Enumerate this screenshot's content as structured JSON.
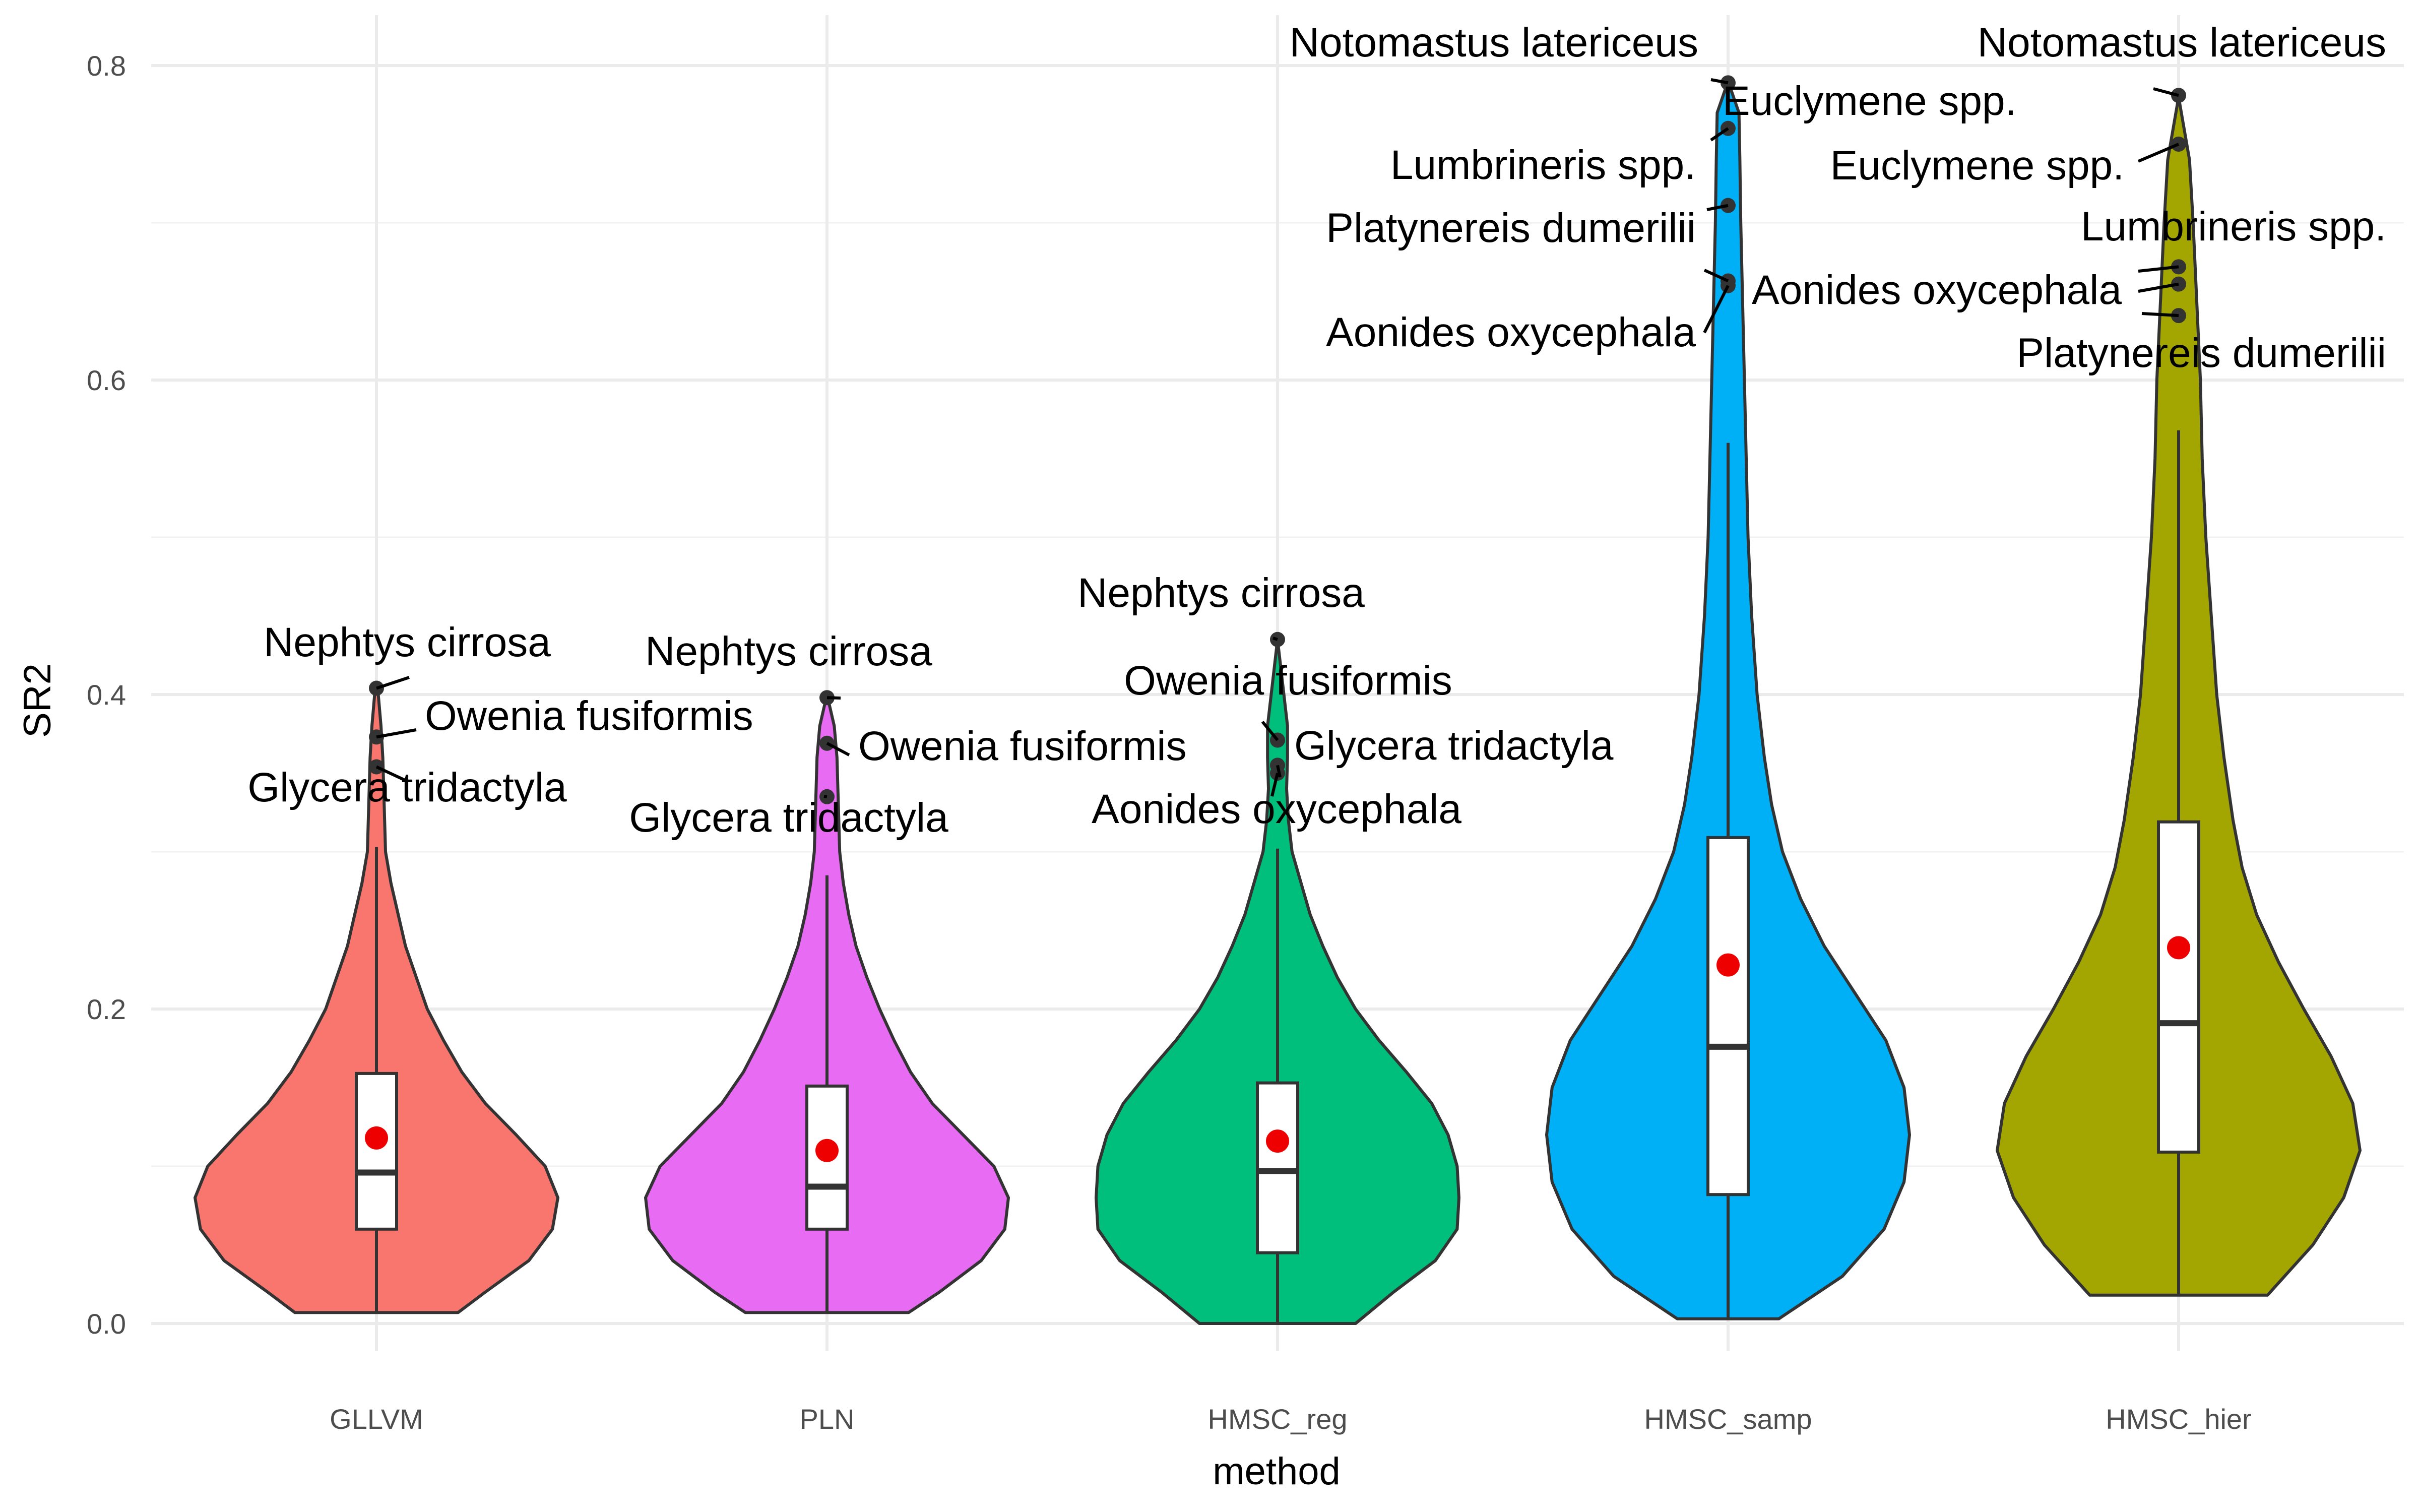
{
  "chart_data": {
    "type": "violin",
    "xlabel": "method",
    "ylabel": "SR2",
    "ylim": [
      0,
      0.8
    ],
    "yticks": [
      0.0,
      0.2,
      0.4,
      0.6,
      0.8
    ],
    "ytick_labels": [
      "0.0",
      "0.2",
      "0.4",
      "0.6",
      "0.8"
    ],
    "grid": true,
    "legend": "none",
    "categories": [
      "GLLVM",
      "PLN",
      "HMSC_reg",
      "HMSC_samp",
      "HMSC_hier"
    ],
    "series": [
      {
        "category": "GLLVM",
        "color": "#F8766D",
        "range": [
          0.007,
          0.405
        ],
        "q1": 0.06,
        "median": 0.096,
        "q3": 0.159,
        "whisker_low": 0.007,
        "whisker_high": 0.303,
        "mean": 0.118,
        "density": [
          [
            0.007,
            0.45
          ],
          [
            0.02,
            0.6
          ],
          [
            0.04,
            0.84
          ],
          [
            0.06,
            0.97
          ],
          [
            0.08,
            1.0
          ],
          [
            0.1,
            0.93
          ],
          [
            0.12,
            0.77
          ],
          [
            0.14,
            0.6
          ],
          [
            0.16,
            0.47
          ],
          [
            0.18,
            0.37
          ],
          [
            0.2,
            0.28
          ],
          [
            0.22,
            0.22
          ],
          [
            0.24,
            0.16
          ],
          [
            0.26,
            0.12
          ],
          [
            0.28,
            0.08
          ],
          [
            0.3,
            0.05
          ],
          [
            0.32,
            0.045
          ],
          [
            0.34,
            0.04
          ],
          [
            0.36,
            0.035
          ],
          [
            0.38,
            0.025
          ],
          [
            0.4,
            0.01
          ],
          [
            0.405,
            0.0
          ]
        ],
        "outliers": [
          {
            "label": "Nephtys cirrosa",
            "y": 0.404
          },
          {
            "label": "Owenia fusiformis",
            "y": 0.373
          },
          {
            "label": "Glycera tridactyla",
            "y": 0.354
          }
        ]
      },
      {
        "category": "PLN",
        "color": "#E76BF3",
        "range": [
          0.007,
          0.4
        ],
        "q1": 0.06,
        "median": 0.087,
        "q3": 0.151,
        "whisker_low": 0.007,
        "whisker_high": 0.285,
        "mean": 0.11,
        "density": [
          [
            0.007,
            0.45
          ],
          [
            0.02,
            0.62
          ],
          [
            0.04,
            0.85
          ],
          [
            0.06,
            0.98
          ],
          [
            0.08,
            1.0
          ],
          [
            0.1,
            0.92
          ],
          [
            0.12,
            0.75
          ],
          [
            0.14,
            0.58
          ],
          [
            0.16,
            0.46
          ],
          [
            0.18,
            0.37
          ],
          [
            0.2,
            0.29
          ],
          [
            0.22,
            0.22
          ],
          [
            0.24,
            0.16
          ],
          [
            0.26,
            0.12
          ],
          [
            0.28,
            0.09
          ],
          [
            0.3,
            0.07
          ],
          [
            0.32,
            0.065
          ],
          [
            0.34,
            0.06
          ],
          [
            0.36,
            0.055
          ],
          [
            0.38,
            0.04
          ],
          [
            0.4,
            0.0
          ]
        ],
        "outliers": [
          {
            "label": "Nephtys cirrosa",
            "y": 0.398
          },
          {
            "label": "Owenia fusiformis",
            "y": 0.369
          },
          {
            "label": "Glycera tridactyla",
            "y": 0.335
          }
        ]
      },
      {
        "category": "HMSC_reg",
        "color": "#00BF7D",
        "range": [
          0.0,
          0.435
        ],
        "q1": 0.045,
        "median": 0.097,
        "q3": 0.153,
        "whisker_low": 0.0,
        "whisker_high": 0.302,
        "mean": 0.116,
        "density": [
          [
            0.0,
            0.43
          ],
          [
            0.02,
            0.64
          ],
          [
            0.04,
            0.87
          ],
          [
            0.06,
            0.99
          ],
          [
            0.08,
            1.0
          ],
          [
            0.1,
            0.99
          ],
          [
            0.12,
            0.94
          ],
          [
            0.14,
            0.85
          ],
          [
            0.16,
            0.71
          ],
          [
            0.18,
            0.56
          ],
          [
            0.2,
            0.43
          ],
          [
            0.22,
            0.33
          ],
          [
            0.24,
            0.25
          ],
          [
            0.26,
            0.18
          ],
          [
            0.28,
            0.13
          ],
          [
            0.3,
            0.08
          ],
          [
            0.32,
            0.06
          ],
          [
            0.34,
            0.05
          ],
          [
            0.36,
            0.055
          ],
          [
            0.38,
            0.055
          ],
          [
            0.4,
            0.035
          ],
          [
            0.42,
            0.015
          ],
          [
            0.435,
            0.0
          ]
        ],
        "outliers": [
          {
            "label": "Nephtys cirrosa",
            "y": 0.435
          },
          {
            "label": "Owenia fusiformis",
            "y": 0.371
          },
          {
            "label": "Glycera tridactyla",
            "y": 0.355
          },
          {
            "label": "Aonides oxycephala",
            "y": 0.35
          }
        ]
      },
      {
        "category": "HMSC_samp",
        "color": "#00B0F6",
        "range": [
          0.003,
          0.79
        ],
        "q1": 0.082,
        "median": 0.176,
        "q3": 0.309,
        "whisker_low": 0.003,
        "whisker_high": 0.56,
        "mean": 0.228,
        "density": [
          [
            0.003,
            0.28
          ],
          [
            0.03,
            0.63
          ],
          [
            0.06,
            0.86
          ],
          [
            0.09,
            0.97
          ],
          [
            0.12,
            1.0
          ],
          [
            0.15,
            0.97
          ],
          [
            0.18,
            0.87
          ],
          [
            0.21,
            0.7
          ],
          [
            0.24,
            0.53
          ],
          [
            0.27,
            0.4
          ],
          [
            0.3,
            0.3
          ],
          [
            0.33,
            0.24
          ],
          [
            0.36,
            0.2
          ],
          [
            0.4,
            0.16
          ],
          [
            0.45,
            0.13
          ],
          [
            0.5,
            0.11
          ],
          [
            0.55,
            0.1
          ],
          [
            0.6,
            0.09
          ],
          [
            0.65,
            0.08
          ],
          [
            0.7,
            0.07
          ],
          [
            0.74,
            0.065
          ],
          [
            0.77,
            0.06
          ],
          [
            0.79,
            0.0
          ]
        ],
        "outliers": [
          {
            "label": "Notomastus latericeus",
            "y": 0.789
          },
          {
            "label": "Euclymene spp.",
            "y": 0.76
          },
          {
            "label": "Lumbrineris spp.",
            "y": 0.711
          },
          {
            "label": "Platynereis dumerilii",
            "y": 0.663
          },
          {
            "label": "Aonides oxycephala",
            "y": 0.66
          }
        ]
      },
      {
        "category": "HMSC_hier",
        "color": "#A3A500",
        "range": [
          0.018,
          0.78
        ],
        "q1": 0.109,
        "median": 0.191,
        "q3": 0.319,
        "whisker_low": 0.018,
        "whisker_high": 0.568,
        "mean": 0.239,
        "density": [
          [
            0.018,
            0.49
          ],
          [
            0.05,
            0.74
          ],
          [
            0.08,
            0.91
          ],
          [
            0.11,
            1.0
          ],
          [
            0.14,
            0.96
          ],
          [
            0.17,
            0.84
          ],
          [
            0.2,
            0.69
          ],
          [
            0.23,
            0.55
          ],
          [
            0.26,
            0.43
          ],
          [
            0.29,
            0.35
          ],
          [
            0.32,
            0.3
          ],
          [
            0.36,
            0.25
          ],
          [
            0.4,
            0.21
          ],
          [
            0.45,
            0.18
          ],
          [
            0.5,
            0.15
          ],
          [
            0.55,
            0.13
          ],
          [
            0.6,
            0.12
          ],
          [
            0.65,
            0.1
          ],
          [
            0.7,
            0.08
          ],
          [
            0.74,
            0.06
          ],
          [
            0.78,
            0.0
          ]
        ],
        "outliers": [
          {
            "label": "Notomastus latericeus",
            "y": 0.781
          },
          {
            "label": "Euclymene spp.",
            "y": 0.75
          },
          {
            "label": "Lumbrineris spp.",
            "y": 0.672
          },
          {
            "label": "Aonides oxycephala",
            "y": 0.661
          },
          {
            "label": "Platynereis dumerilii",
            "y": 0.641
          }
        ]
      }
    ]
  }
}
